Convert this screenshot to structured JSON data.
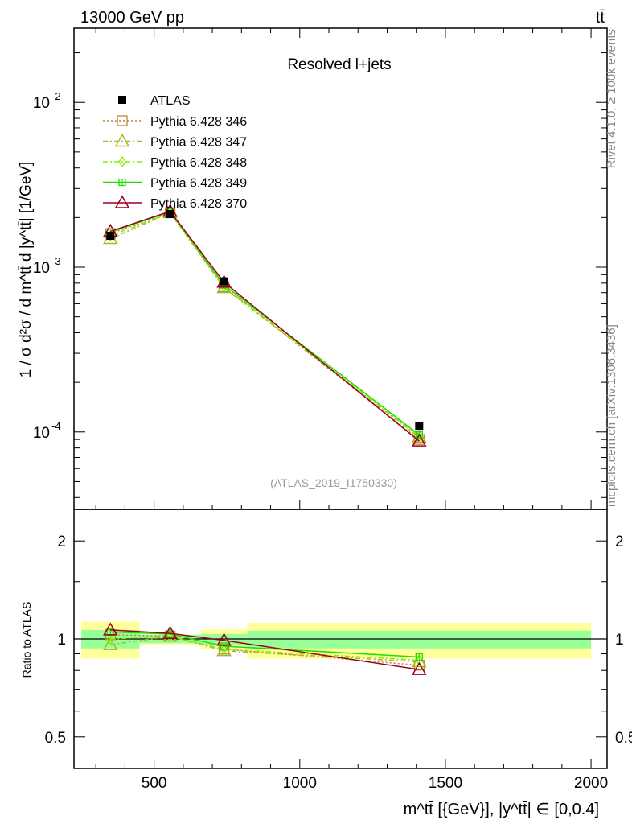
{
  "chart_data": {
    "type": "line",
    "header_left": "13000 GeV pp",
    "header_right": "tt̄",
    "title": "Resolved l+jets",
    "watermark": "(ATLAS_2019_I1750330)",
    "side_label_top": "Rivet 4.1.0, ≥ 100k events",
    "side_label_bottom": "mcplots.cern.ch [arXiv:1306.3436]",
    "xlabel": "m^tt̄ [{GeV}], |y^tt̄| ∈ [0,0.4]",
    "ylabel": "1 / σ d²σ / d m^tt̄ d |y^tt̄| [1/GeV]",
    "ratio_ylabel": "Ratio to ATLAS",
    "xlim": [
      225,
      2055
    ],
    "ylim": [
      3.39e-05,
      0.0282
    ],
    "ratio_ylim": [
      0.4,
      2.5
    ],
    "yscale": "log",
    "x_ticks": [
      "500",
      "1000",
      "1500",
      "2000"
    ],
    "x_tick_values": [
      500,
      1000,
      1500,
      2000
    ],
    "y_ticks": [
      {
        "v": 0.01,
        "label": "10",
        "exp": "-2"
      },
      {
        "v": 0.001,
        "label": "10",
        "exp": "-3"
      },
      {
        "v": 0.0001,
        "label": "10",
        "exp": "-4"
      }
    ],
    "ratio_ticks": [
      {
        "v": 2,
        "label": "2"
      },
      {
        "v": 1,
        "label": "1"
      },
      {
        "v": 0.5,
        "label": "0.5"
      }
    ],
    "bin_edges": [
      250,
      450,
      660,
      820,
      2000
    ],
    "x": [
      350,
      555,
      740,
      1410
    ],
    "data": {
      "name": "ATLAS",
      "values": [
        0.00155,
        0.0021,
        0.00082,
        0.000109
      ]
    },
    "band_stat": [
      [
        0.935,
        1.065
      ],
      [
        0.97,
        1.03
      ],
      [
        0.955,
        1.035
      ],
      [
        0.935,
        1.06
      ]
    ],
    "band_total": [
      [
        0.87,
        1.13
      ],
      [
        0.96,
        1.03
      ],
      [
        0.93,
        1.07
      ],
      [
        0.87,
        1.12
      ]
    ],
    "series": [
      {
        "name": "Pythia 6.428 346",
        "color": "#b8863b",
        "dash": "2,3",
        "marker": "square",
        "values": [
          0.0016,
          0.00214,
          0.00076,
          9e-05
        ],
        "ratio": [
          1.03,
          1.02,
          0.93,
          0.83
        ]
      },
      {
        "name": "Pythia 6.428 347",
        "color": "#a8b820",
        "dash": "6,3,2,3",
        "marker": "triangle",
        "values": [
          0.00149,
          0.00214,
          0.00075,
          9.3e-05
        ],
        "ratio": [
          0.96,
          1.02,
          0.92,
          0.85
        ]
      },
      {
        "name": "Pythia 6.428 348",
        "color": "#88ee00",
        "dash": "6,3,2,3",
        "marker": "diamond",
        "values": [
          0.00155,
          0.00214,
          0.00076,
          9.4e-05
        ],
        "ratio": [
          1.0,
          1.02,
          0.93,
          0.86
        ]
      },
      {
        "name": "Pythia 6.428 349",
        "color": "#22dd00",
        "dash": "",
        "marker": "cross-square",
        "values": [
          0.00163,
          0.00217,
          0.00078,
          9.6e-05
        ],
        "ratio": [
          1.05,
          1.035,
          0.95,
          0.88
        ]
      },
      {
        "name": "Pythia 6.428 370",
        "color": "#a0001e",
        "dash": "",
        "marker": "triangle",
        "values": [
          0.00165,
          0.00218,
          0.00081,
          8.8e-05
        ],
        "ratio": [
          1.065,
          1.04,
          0.99,
          0.805
        ]
      }
    ],
    "colors": {
      "stat_band": "#99ff99",
      "total_band": "#ffff99",
      "data": "#000000"
    }
  }
}
